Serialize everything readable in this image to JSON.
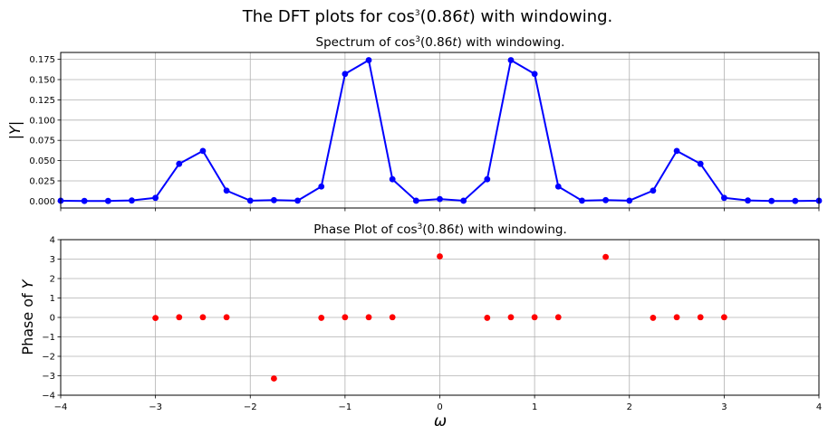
{
  "chart_data": {
    "suptitle": {
      "pre": "The DFT plots for cos",
      "sup": "3",
      "post": "(0.86",
      "var": "t",
      "end": ") with windowing."
    },
    "panels": [
      {
        "type": "line",
        "title": {
          "pre": "Spectrum of cos",
          "sup": "3",
          "post": "(0.86",
          "var": "t",
          "end": ") with windowing."
        },
        "ylabel": "|Y|",
        "xlim": [
          -4,
          4
        ],
        "ylim": [
          -0.0085,
          0.1835
        ],
        "yticks": [
          "0.000",
          "0.025",
          "0.050",
          "0.075",
          "0.100",
          "0.125",
          "0.150",
          "0.175"
        ],
        "yticks_values": [
          0,
          0.025,
          0.05,
          0.075,
          0.1,
          0.125,
          0.15,
          0.175
        ],
        "show_xticklabels": false,
        "color": "#0000ff",
        "grid": true,
        "x": [
          -4,
          -3.75,
          -3.5,
          -3.25,
          -3,
          -2.75,
          -2.5,
          -2.25,
          -2,
          -1.75,
          -1.5,
          -1.25,
          -1,
          -0.75,
          -0.5,
          -0.25,
          0,
          0.25,
          0.5,
          0.75,
          1,
          1.25,
          1.5,
          1.75,
          2,
          2.25,
          2.5,
          2.75,
          3,
          3.25,
          3.5,
          3.75,
          4
        ],
        "y": [
          0.0005,
          0.0002,
          0.0002,
          0.0008,
          0.004,
          0.046,
          0.062,
          0.013,
          0.0006,
          0.0012,
          0.0006,
          0.018,
          0.157,
          0.174,
          0.027,
          0.0005,
          0.0025,
          0.0005,
          0.027,
          0.174,
          0.157,
          0.018,
          0.0006,
          0.0012,
          0.0006,
          0.013,
          0.062,
          0.046,
          0.004,
          0.0008,
          0.0002,
          0.0002,
          0.0005
        ]
      },
      {
        "type": "scatter",
        "title": {
          "pre": "Phase Plot of cos",
          "sup": "3",
          "post": "(0.86",
          "var": "t",
          "end": ") with windowing."
        },
        "ylabel_pre": "Phase of ",
        "ylabel_var": "Y",
        "xlabel": "ω",
        "xlim": [
          -4,
          4
        ],
        "ylim": [
          -4,
          4
        ],
        "xticks": [
          "−4",
          "−3",
          "−2",
          "−1",
          "0",
          "1",
          "2",
          "3",
          "4"
        ],
        "xticks_values": [
          -4,
          -3,
          -2,
          -1,
          0,
          1,
          2,
          3,
          4
        ],
        "yticks": [
          "−4",
          "−3",
          "−2",
          "−1",
          "0",
          "1",
          "2",
          "3",
          "4"
        ],
        "yticks_values": [
          -4,
          -3,
          -2,
          -1,
          0,
          1,
          2,
          3,
          4
        ],
        "color": "#ff0000",
        "grid": true,
        "x": [
          -3,
          -2.75,
          -2.5,
          -2.25,
          -1.75,
          -1.25,
          -1,
          -0.75,
          -0.5,
          0,
          0.5,
          0.75,
          1,
          1.25,
          1.75,
          2.25,
          2.5,
          2.75,
          3
        ],
        "y": [
          -0.03,
          0.01,
          0.01,
          0.01,
          -3.14,
          -0.02,
          0.01,
          0.01,
          0.01,
          3.14,
          -0.02,
          0.01,
          0.01,
          0.01,
          3.11,
          -0.02,
          0.01,
          0.01,
          0.01
        ]
      }
    ]
  }
}
